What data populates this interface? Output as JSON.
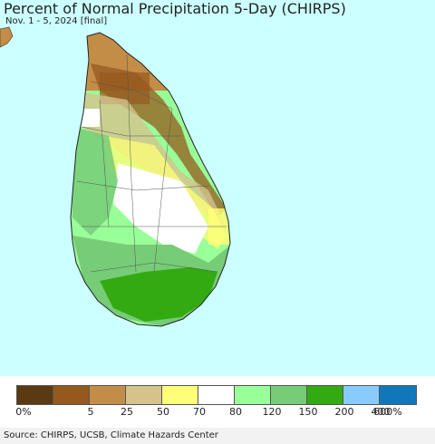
{
  "title": "Percent of Normal Precipitation 5-Day (CHIRPS)",
  "subtitle": "Nov. 1 - 5, 2024 [final]",
  "source": "Source: CHIRPS, UCSB, Climate Hazards Center",
  "colors": {
    "ocean": "#ccffff",
    "land_default": "#ffffff",
    "border": "#333333"
  },
  "legend": {
    "swatches": [
      {
        "color": "#5a3a12"
      },
      {
        "color": "#95591e"
      },
      {
        "color": "#c48d47"
      },
      {
        "color": "#d5c38c"
      },
      {
        "color": "#ffff77"
      },
      {
        "color": "#ffffff"
      },
      {
        "color": "#99ff99"
      },
      {
        "color": "#77cc77"
      },
      {
        "color": "#33aa11"
      },
      {
        "color": "#88ccff"
      },
      {
        "color": "#1177bb"
      }
    ],
    "labels": [
      "0%",
      "5",
      "25",
      "50",
      "70",
      "80",
      "120",
      "150",
      "200",
      "400",
      "600%"
    ]
  }
}
